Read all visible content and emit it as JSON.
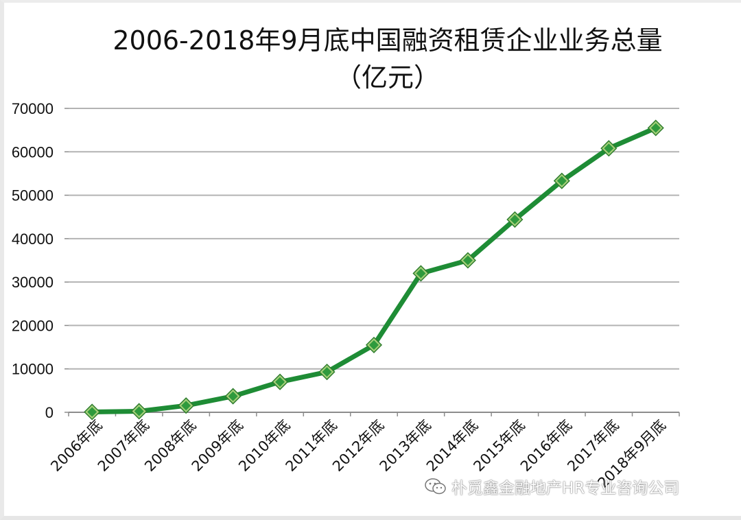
{
  "chart_data": {
    "type": "line",
    "title": "2006-2018年9月底中国融资租赁企业业务总量",
    "subtitle": "（亿元）",
    "categories": [
      "2006年底",
      "2007年底",
      "2008年底",
      "2009年底",
      "2010年底",
      "2011年底",
      "2012年底",
      "2013年底",
      "2014年底",
      "2015年底",
      "2016年底",
      "2017年底",
      "2018年9月底"
    ],
    "series": [
      {
        "values": [
          80,
          240,
          1550,
          3700,
          7000,
          9300,
          15500,
          32000,
          35000,
          44400,
          53300,
          60800,
          65500
        ]
      }
    ],
    "ylim": [
      0,
      70000
    ],
    "yticks": [
      0,
      10000,
      20000,
      30000,
      40000,
      50000,
      60000,
      70000
    ],
    "xlabel": "",
    "ylabel": "",
    "grid": true,
    "legend": "none",
    "colors": {
      "line": "#1e8c35",
      "marker_fill": "#a6d07a",
      "marker_edge": "#2e7d2e",
      "grid": "#b3b3b3",
      "axis": "#8c8c8c"
    }
  },
  "watermark": {
    "text": "朴觅鑫金融地产HR专业咨询公司",
    "icon": "wechat-icon"
  }
}
